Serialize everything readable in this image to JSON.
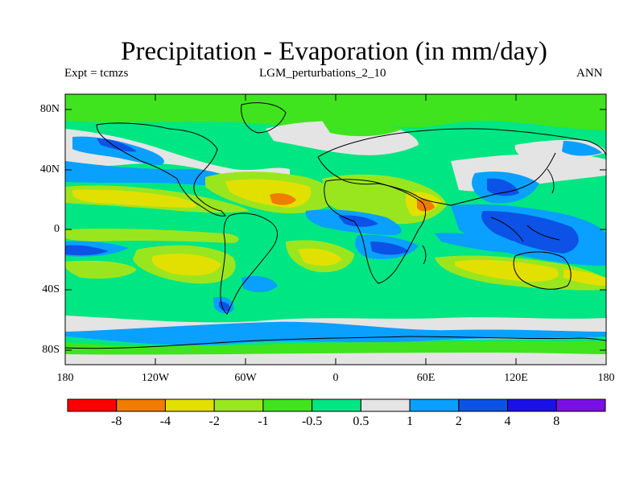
{
  "header": {
    "title": "Precipitation - Evaporation (in mm/day)",
    "left_label": "Expt = tcmzs",
    "center_label": "LGM_perturbations_2_10",
    "right_label": "ANN"
  },
  "map": {
    "lat_ticks": [
      "80N",
      "40N",
      "0",
      "40S",
      "80S"
    ],
    "lon_ticks": [
      "180",
      "120W",
      "60W",
      "0",
      "60E",
      "120E",
      "180"
    ]
  },
  "colorbar": {
    "colors": [
      "#ff0000",
      "#f07c00",
      "#e2e000",
      "#9ae61e",
      "#40e41e",
      "#00e682",
      "#e4e4e4",
      "#0aa0ff",
      "#0c52e6",
      "#1c10e8",
      "#7a10e6"
    ],
    "labels": [
      "-8",
      "-4",
      "-2",
      "-1",
      "-0.5",
      "0.5",
      "1",
      "2",
      "4",
      "8"
    ]
  }
}
